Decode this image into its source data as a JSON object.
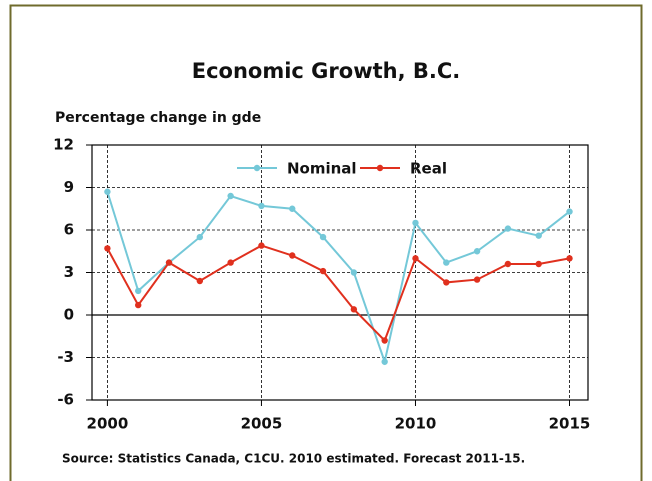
{
  "chart_data": {
    "type": "line",
    "title": "Economic Growth, B.C.",
    "y_label": "Percentage change in gde",
    "source": "Source: Statistics Canada, C1CU. 2010 estimated.  Forecast 2011-15.",
    "x": [
      2000,
      2001,
      2002,
      2003,
      2004,
      2005,
      2006,
      2007,
      2008,
      2009,
      2010,
      2011,
      2012,
      2013,
      2014,
      2015
    ],
    "series": [
      {
        "name": "Nominal",
        "color": "#74c8d8",
        "values": [
          8.7,
          1.7,
          3.7,
          5.5,
          8.4,
          7.7,
          7.5,
          5.5,
          3.0,
          -3.3,
          6.5,
          3.7,
          4.5,
          6.1,
          5.6,
          7.3
        ]
      },
      {
        "name": "Real",
        "color": "#e0301e",
        "values": [
          4.7,
          0.7,
          3.7,
          2.4,
          3.7,
          4.9,
          4.2,
          3.1,
          0.4,
          -1.8,
          4.0,
          2.3,
          2.5,
          3.6,
          3.6,
          4.0
        ]
      }
    ],
    "xlim": [
      1999.5,
      2015.6
    ],
    "xticks": [
      2000,
      2005,
      2010,
      2015
    ],
    "ylim": [
      -6,
      12
    ],
    "yticks": [
      12,
      9,
      6,
      3,
      0,
      -3,
      -6
    ],
    "grid": true,
    "legend": "top"
  }
}
